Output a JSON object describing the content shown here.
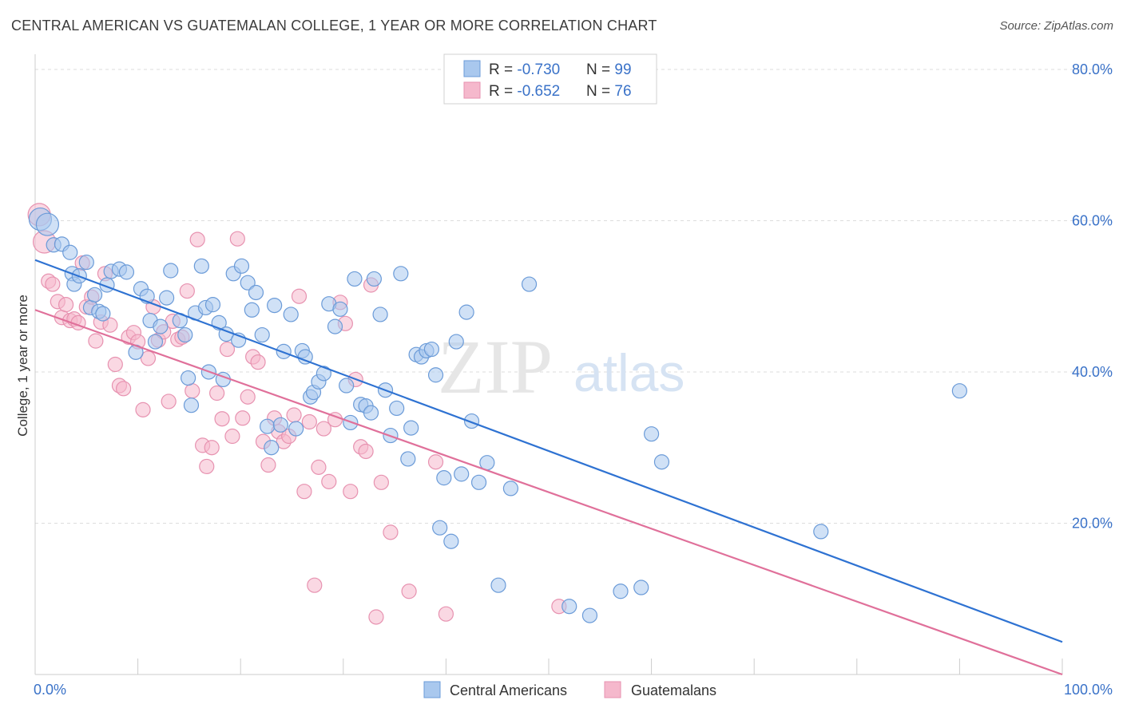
{
  "title": "CENTRAL AMERICAN VS GUATEMALAN COLLEGE, 1 YEAR OR MORE CORRELATION CHART",
  "source": "Source: ZipAtlas.com",
  "watermark": {
    "zip": "ZIP",
    "atlas": "atlas"
  },
  "colors": {
    "blue_fill": "#a9c8ee",
    "blue_stroke": "#6b9bd8",
    "blue_line": "#2e72d2",
    "pink_fill": "#f5b8cc",
    "pink_stroke": "#e792b0",
    "pink_line": "#e0709a",
    "grid": "#dddddd",
    "tick_label": "#3a72c8"
  },
  "chart_data": {
    "type": "scatter",
    "title": "CENTRAL AMERICAN VS GUATEMALAN COLLEGE, 1 YEAR OR MORE CORRELATION CHART",
    "xlabel": "",
    "ylabel": "College, 1 year or more",
    "xlim": [
      0,
      100
    ],
    "ylim": [
      0,
      82
    ],
    "x_tick_labels": [
      "0.0%",
      "100.0%"
    ],
    "y_ticks": [
      {
        "value": 20,
        "label": "20.0%"
      },
      {
        "value": 40,
        "label": "40.0%"
      },
      {
        "value": 60,
        "label": "60.0%"
      },
      {
        "value": 80,
        "label": "80.0%"
      }
    ],
    "grid": true,
    "legend_placement": "top-center",
    "legend": [
      {
        "r_label": "R = ",
        "r_value": "-0.730",
        "n_label": "N = ",
        "n_value": "99"
      },
      {
        "r_label": "R = ",
        "r_value": "-0.652",
        "n_label": "N = ",
        "n_value": "76"
      }
    ],
    "series": [
      {
        "name": "Central Americans",
        "color": "#a9c8ee",
        "regression": {
          "x": [
            0,
            100
          ],
          "y": [
            54.8,
            4.3
          ]
        },
        "points": [
          [
            0.5,
            60.2
          ],
          [
            1.2,
            59.5
          ],
          [
            1.8,
            56.8
          ],
          [
            2.6,
            56.9
          ],
          [
            3.4,
            55.8
          ],
          [
            3.6,
            53.0
          ],
          [
            3.8,
            51.6
          ],
          [
            4.3,
            52.7
          ],
          [
            5.0,
            54.5
          ],
          [
            5.4,
            48.5
          ],
          [
            5.8,
            50.2
          ],
          [
            6.2,
            48.0
          ],
          [
            6.6,
            47.7
          ],
          [
            7.0,
            51.5
          ],
          [
            7.4,
            53.3
          ],
          [
            8.2,
            53.6
          ],
          [
            8.9,
            53.2
          ],
          [
            9.8,
            42.6
          ],
          [
            10.3,
            51.0
          ],
          [
            10.9,
            50.0
          ],
          [
            11.2,
            46.8
          ],
          [
            11.7,
            44.0
          ],
          [
            12.2,
            46.0
          ],
          [
            12.8,
            49.8
          ],
          [
            13.2,
            53.4
          ],
          [
            14.1,
            46.8
          ],
          [
            14.6,
            44.9
          ],
          [
            14.9,
            39.2
          ],
          [
            15.2,
            35.6
          ],
          [
            15.6,
            47.8
          ],
          [
            16.2,
            54.0
          ],
          [
            16.6,
            48.5
          ],
          [
            16.9,
            40.0
          ],
          [
            17.3,
            48.9
          ],
          [
            17.9,
            46.5
          ],
          [
            18.3,
            39.0
          ],
          [
            18.6,
            45.0
          ],
          [
            19.3,
            53.0
          ],
          [
            19.8,
            44.2
          ],
          [
            20.1,
            54.0
          ],
          [
            20.7,
            51.8
          ],
          [
            21.1,
            48.2
          ],
          [
            21.5,
            50.5
          ],
          [
            22.1,
            44.9
          ],
          [
            22.6,
            32.8
          ],
          [
            23.0,
            30.0
          ],
          [
            23.3,
            48.8
          ],
          [
            23.9,
            33.0
          ],
          [
            24.2,
            42.7
          ],
          [
            24.9,
            47.6
          ],
          [
            25.4,
            32.5
          ],
          [
            26.0,
            42.8
          ],
          [
            26.3,
            42.0
          ],
          [
            26.8,
            36.7
          ],
          [
            27.1,
            37.3
          ],
          [
            27.6,
            38.7
          ],
          [
            28.1,
            39.8
          ],
          [
            28.6,
            49.0
          ],
          [
            29.2,
            46.0
          ],
          [
            29.7,
            48.3
          ],
          [
            30.3,
            38.2
          ],
          [
            30.7,
            33.3
          ],
          [
            31.1,
            52.3
          ],
          [
            31.7,
            35.7
          ],
          [
            32.2,
            35.5
          ],
          [
            32.7,
            34.6
          ],
          [
            33.0,
            52.3
          ],
          [
            33.6,
            47.6
          ],
          [
            34.1,
            37.6
          ],
          [
            34.6,
            31.6
          ],
          [
            35.2,
            35.2
          ],
          [
            35.6,
            53.0
          ],
          [
            36.3,
            28.5
          ],
          [
            36.6,
            32.6
          ],
          [
            37.1,
            42.3
          ],
          [
            37.6,
            42.0
          ],
          [
            38.1,
            42.8
          ],
          [
            38.6,
            43.0
          ],
          [
            39.0,
            39.6
          ],
          [
            39.4,
            19.4
          ],
          [
            39.8,
            26.0
          ],
          [
            40.5,
            17.6
          ],
          [
            41.0,
            44.0
          ],
          [
            41.5,
            26.5
          ],
          [
            42.0,
            47.9
          ],
          [
            42.5,
            33.5
          ],
          [
            43.2,
            25.4
          ],
          [
            44.0,
            28.0
          ],
          [
            45.1,
            11.8
          ],
          [
            46.3,
            24.6
          ],
          [
            48.1,
            51.6
          ],
          [
            52.0,
            9.0
          ],
          [
            54.0,
            7.8
          ],
          [
            57.0,
            11.0
          ],
          [
            60.0,
            31.8
          ],
          [
            61.0,
            28.1
          ],
          [
            76.5,
            18.9
          ],
          [
            90.0,
            37.5
          ],
          [
            59.0,
            11.5
          ]
        ]
      },
      {
        "name": "Guatemalans",
        "color": "#f5b8cc",
        "regression": {
          "x": [
            0,
            100
          ],
          "y": [
            48.2,
            0
          ]
        },
        "points": [
          [
            0.4,
            60.8
          ],
          [
            0.9,
            57.2
          ],
          [
            1.3,
            52.0
          ],
          [
            1.7,
            51.6
          ],
          [
            2.2,
            49.3
          ],
          [
            2.6,
            47.2
          ],
          [
            3.0,
            48.9
          ],
          [
            3.4,
            46.8
          ],
          [
            3.8,
            47.0
          ],
          [
            4.2,
            46.5
          ],
          [
            4.6,
            54.4
          ],
          [
            5.0,
            48.6
          ],
          [
            5.5,
            49.9
          ],
          [
            5.9,
            44.1
          ],
          [
            6.4,
            46.6
          ],
          [
            6.8,
            53.0
          ],
          [
            7.3,
            46.2
          ],
          [
            7.8,
            41.0
          ],
          [
            8.2,
            38.2
          ],
          [
            8.6,
            37.8
          ],
          [
            9.1,
            44.6
          ],
          [
            9.6,
            45.2
          ],
          [
            10.0,
            44.0
          ],
          [
            10.5,
            35.0
          ],
          [
            11.0,
            41.8
          ],
          [
            11.5,
            48.6
          ],
          [
            12.0,
            44.2
          ],
          [
            12.5,
            45.3
          ],
          [
            13.0,
            36.1
          ],
          [
            13.4,
            46.7
          ],
          [
            13.9,
            44.3
          ],
          [
            14.3,
            44.6
          ],
          [
            14.8,
            50.7
          ],
          [
            15.3,
            37.5
          ],
          [
            15.8,
            57.5
          ],
          [
            16.3,
            30.3
          ],
          [
            16.7,
            27.5
          ],
          [
            17.2,
            30.0
          ],
          [
            17.7,
            37.2
          ],
          [
            18.2,
            33.8
          ],
          [
            18.7,
            43.0
          ],
          [
            19.2,
            31.5
          ],
          [
            19.7,
            57.6
          ],
          [
            20.2,
            33.9
          ],
          [
            20.7,
            36.7
          ],
          [
            21.2,
            42.0
          ],
          [
            21.7,
            41.3
          ],
          [
            22.2,
            30.8
          ],
          [
            22.7,
            27.7
          ],
          [
            23.3,
            33.9
          ],
          [
            23.7,
            32.1
          ],
          [
            24.2,
            30.8
          ],
          [
            24.7,
            31.5
          ],
          [
            25.2,
            34.3
          ],
          [
            25.7,
            50.0
          ],
          [
            26.2,
            24.2
          ],
          [
            26.7,
            33.4
          ],
          [
            27.2,
            11.8
          ],
          [
            27.6,
            27.4
          ],
          [
            28.1,
            32.5
          ],
          [
            28.6,
            25.5
          ],
          [
            29.2,
            33.7
          ],
          [
            29.7,
            49.2
          ],
          [
            30.2,
            46.4
          ],
          [
            30.7,
            24.2
          ],
          [
            31.2,
            39.0
          ],
          [
            31.7,
            30.1
          ],
          [
            32.2,
            29.5
          ],
          [
            32.7,
            51.5
          ],
          [
            33.2,
            7.6
          ],
          [
            33.7,
            25.4
          ],
          [
            34.6,
            18.8
          ],
          [
            36.4,
            11.0
          ],
          [
            39.0,
            28.1
          ],
          [
            40.0,
            8.0
          ],
          [
            51.0,
            9.0
          ]
        ]
      }
    ]
  },
  "bottom_legend": [
    {
      "label": "Central Americans"
    },
    {
      "label": "Guatemalans"
    }
  ]
}
